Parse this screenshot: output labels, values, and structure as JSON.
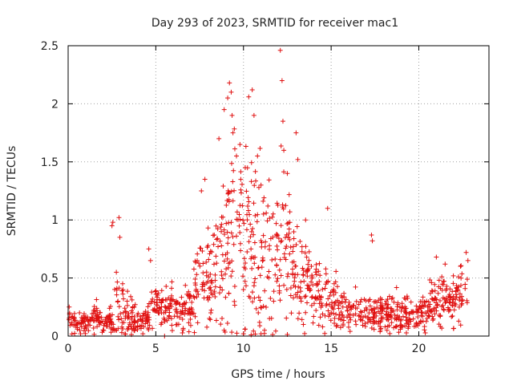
{
  "chart_data": {
    "type": "scatter",
    "title": "Day 293 of 2023, SRMTID for receiver mac1",
    "xlabel": "GPS time / hours",
    "ylabel": "SRMTID / TECUs",
    "xlim": [
      0,
      24
    ],
    "ylim": [
      0,
      2.5
    ],
    "x_ticks": [
      0,
      5,
      10,
      15,
      20
    ],
    "x_tick_labels": [
      "0",
      "5",
      "10",
      "15",
      "20"
    ],
    "y_ticks": [
      0,
      0.5,
      1,
      1.5,
      2,
      2.5
    ],
    "y_tick_labels": [
      "0",
      "0.5",
      "1",
      "1.5",
      "2",
      "2.5"
    ],
    "grid": true,
    "marker": "plus",
    "series_color": "#e01010",
    "series": [
      {
        "name": "SRMTID",
        "profile": [
          [
            0.0,
            0.15,
            0.05
          ],
          [
            0.5,
            0.12,
            0.05
          ],
          [
            1.0,
            0.09,
            0.04
          ],
          [
            1.5,
            0.18,
            0.05
          ],
          [
            2.0,
            0.1,
            0.04
          ],
          [
            2.5,
            0.15,
            0.06
          ],
          [
            2.8,
            0.3,
            0.2
          ],
          [
            3.2,
            0.2,
            0.12
          ],
          [
            4.0,
            0.14,
            0.05
          ],
          [
            4.5,
            0.12,
            0.05
          ],
          [
            5.0,
            0.28,
            0.1
          ],
          [
            5.5,
            0.22,
            0.08
          ],
          [
            6.0,
            0.25,
            0.1
          ],
          [
            7.0,
            0.22,
            0.08
          ],
          [
            7.5,
            0.45,
            0.2
          ],
          [
            8.5,
            0.6,
            0.25
          ],
          [
            9.5,
            0.9,
            0.45
          ],
          [
            10.5,
            0.85,
            0.45
          ],
          [
            11.5,
            0.6,
            0.3
          ],
          [
            12.3,
            0.8,
            0.4
          ],
          [
            13.0,
            0.55,
            0.25
          ],
          [
            14.0,
            0.42,
            0.15
          ],
          [
            15.0,
            0.32,
            0.12
          ],
          [
            16.0,
            0.2,
            0.08
          ],
          [
            17.0,
            0.18,
            0.08
          ],
          [
            18.0,
            0.2,
            0.08
          ],
          [
            19.0,
            0.2,
            0.08
          ],
          [
            20.0,
            0.18,
            0.07
          ],
          [
            21.0,
            0.3,
            0.1
          ],
          [
            22.0,
            0.32,
            0.1
          ],
          [
            22.8,
            0.4,
            0.15
          ]
        ],
        "outliers": [
          [
            2.5,
            0.95
          ],
          [
            2.55,
            0.98
          ],
          [
            2.9,
            1.02
          ],
          [
            2.95,
            0.85
          ],
          [
            2.75,
            0.55
          ],
          [
            4.6,
            0.75
          ],
          [
            4.7,
            0.65
          ],
          [
            7.6,
            1.25
          ],
          [
            7.8,
            1.35
          ],
          [
            8.6,
            1.7
          ],
          [
            8.9,
            1.95
          ],
          [
            9.1,
            2.05
          ],
          [
            9.2,
            2.18
          ],
          [
            9.3,
            2.1
          ],
          [
            9.35,
            1.9
          ],
          [
            9.4,
            1.75
          ],
          [
            9.6,
            1.55
          ],
          [
            9.8,
            1.65
          ],
          [
            10.1,
            1.45
          ],
          [
            10.3,
            2.06
          ],
          [
            10.5,
            2.12
          ],
          [
            10.6,
            1.9
          ],
          [
            10.8,
            1.55
          ],
          [
            11.0,
            1.3
          ],
          [
            12.1,
            2.46
          ],
          [
            12.2,
            2.2
          ],
          [
            12.25,
            1.85
          ],
          [
            12.3,
            1.6
          ],
          [
            12.5,
            1.4
          ],
          [
            13.0,
            1.75
          ],
          [
            13.1,
            1.52
          ],
          [
            14.8,
            1.1
          ],
          [
            17.3,
            0.87
          ],
          [
            17.35,
            0.82
          ],
          [
            21.0,
            0.68
          ],
          [
            21.5,
            0.62
          ],
          [
            22.7,
            0.72
          ],
          [
            22.8,
            0.65
          ]
        ],
        "low_points": [
          [
            5.5,
            0.0
          ],
          [
            10.0,
            0.02
          ],
          [
            10.1,
            0.06
          ],
          [
            11.0,
            0.02
          ],
          [
            11.2,
            0.05
          ],
          [
            7.2,
            0.03
          ]
        ]
      }
    ]
  }
}
